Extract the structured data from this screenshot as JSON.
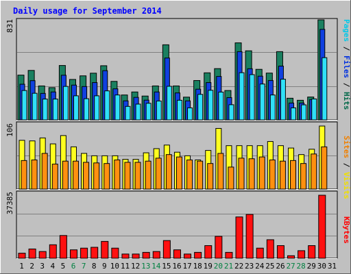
{
  "chart_data": [
    {
      "panel": "top",
      "type": "bar",
      "title": "Daily usage for September 2014",
      "ymax_label": "831",
      "ymax": 831,
      "right_labels": [
        {
          "text": "Pages",
          "color": "#00c8e8"
        },
        {
          "text": "Files",
          "color": "#0030e0"
        },
        {
          "text": "Hits",
          "color": "#006848"
        }
      ],
      "categories": [
        "1",
        "2",
        "3",
        "4",
        "5",
        "6",
        "7",
        "8",
        "9",
        "10",
        "11",
        "12",
        "13",
        "14",
        "15",
        "16",
        "17",
        "18",
        "19",
        "20",
        "21",
        "22",
        "23",
        "24",
        "25",
        "26",
        "27",
        "28",
        "29",
        "30",
        "31"
      ],
      "series": [
        {
          "name": "Hits",
          "color": "#1a8060",
          "values": [
            372,
            411,
            282,
            268,
            452,
            336,
            366,
            388,
            450,
            320,
            207,
            232,
            198,
            282,
            624,
            282,
            189,
            327,
            391,
            426,
            244,
            640,
            574,
            420,
            389,
            567,
            180,
            163,
            190,
            831,
            0
          ]
        },
        {
          "name": "Files",
          "color": "#1040e0",
          "values": [
            296,
            326,
            220,
            232,
            371,
            289,
            277,
            310,
            409,
            258,
            158,
            187,
            164,
            232,
            514,
            224,
            158,
            255,
            310,
            361,
            185,
            567,
            425,
            363,
            327,
            447,
            140,
            140,
            169,
            752,
            0
          ]
        },
        {
          "name": "Pages",
          "color": "#30e0f8",
          "values": [
            244,
            221,
            173,
            173,
            278,
            200,
            176,
            200,
            241,
            207,
            112,
            131,
            138,
            157,
            279,
            163,
            100,
            212,
            246,
            231,
            126,
            392,
            376,
            298,
            207,
            338,
            100,
            125,
            174,
            517,
            0
          ]
        }
      ]
    },
    {
      "panel": "middle",
      "type": "bar",
      "ymax_label": "106",
      "ymax": 106,
      "right_labels": [
        {
          "text": "Visits",
          "color": "#f0e000"
        },
        {
          "text": "Sites",
          "color": "#f08000"
        }
      ],
      "categories": [
        "1",
        "2",
        "3",
        "4",
        "5",
        "6",
        "7",
        "8",
        "9",
        "10",
        "11",
        "12",
        "13",
        "14",
        "15",
        "16",
        "17",
        "18",
        "19",
        "20",
        "21",
        "22",
        "23",
        "24",
        "25",
        "26",
        "27",
        "28",
        "29",
        "30",
        "31"
      ],
      "series": [
        {
          "name": "Visits",
          "color": "#ffff20",
          "values": [
            82,
            81,
            86,
            76,
            90,
            71,
            60,
            56,
            56,
            56,
            50,
            50,
            61,
            68,
            74,
            62,
            56,
            49,
            65,
            102,
            73,
            73,
            73,
            73,
            80,
            73,
            69,
            58,
            67,
            106,
            0
          ]
        },
        {
          "name": "Sites",
          "color": "#ff9010",
          "values": [
            48,
            49,
            60,
            42,
            47,
            47,
            45,
            44,
            43,
            49,
            45,
            45,
            47,
            52,
            58,
            54,
            49,
            47,
            43,
            60,
            37,
            52,
            51,
            54,
            49,
            47,
            48,
            43,
            59,
            71,
            0
          ]
        }
      ]
    },
    {
      "panel": "bottom",
      "type": "bar",
      "ymax_label": "37385",
      "ymax": 37385,
      "right_labels": [
        {
          "text": "KBytes",
          "color": "#ff0000"
        }
      ],
      "categories": [
        "1",
        "2",
        "3",
        "4",
        "5",
        "6",
        "7",
        "8",
        "9",
        "10",
        "11",
        "12",
        "13",
        "14",
        "15",
        "16",
        "17",
        "18",
        "19",
        "20",
        "21",
        "22",
        "23",
        "24",
        "25",
        "26",
        "27",
        "28",
        "29",
        "30",
        "31"
      ],
      "series": [
        {
          "name": "KBytes",
          "color": "#ff1010",
          "values": [
            3000,
            5500,
            4000,
            8000,
            13500,
            5000,
            6000,
            6500,
            10000,
            6000,
            2500,
            2500,
            3500,
            4000,
            10500,
            5000,
            2500,
            3500,
            7500,
            13000,
            3500,
            24500,
            26000,
            6000,
            11000,
            7500,
            1500,
            4500,
            7500,
            37385,
            0
          ]
        }
      ]
    }
  ],
  "xaxis": {
    "days": [
      {
        "label": "1",
        "weekend": false
      },
      {
        "label": "2",
        "weekend": false
      },
      {
        "label": "3",
        "weekend": false
      },
      {
        "label": "4",
        "weekend": false
      },
      {
        "label": "5",
        "weekend": false
      },
      {
        "label": "6",
        "weekend": true
      },
      {
        "label": "7",
        "weekend": true
      },
      {
        "label": "8",
        "weekend": false
      },
      {
        "label": "9",
        "weekend": false
      },
      {
        "label": "10",
        "weekend": false
      },
      {
        "label": "11",
        "weekend": false
      },
      {
        "label": "12",
        "weekend": false
      },
      {
        "label": "13",
        "weekend": true
      },
      {
        "label": "14",
        "weekend": true
      },
      {
        "label": "15",
        "weekend": false
      },
      {
        "label": "16",
        "weekend": false
      },
      {
        "label": "17",
        "weekend": false
      },
      {
        "label": "18",
        "weekend": false
      },
      {
        "label": "19",
        "weekend": false
      },
      {
        "label": "20",
        "weekend": true
      },
      {
        "label": "21",
        "weekend": true
      },
      {
        "label": "22",
        "weekend": false
      },
      {
        "label": "23",
        "weekend": false
      },
      {
        "label": "24",
        "weekend": false
      },
      {
        "label": "25",
        "weekend": false
      },
      {
        "label": "26",
        "weekend": false
      },
      {
        "label": "27",
        "weekend": true
      },
      {
        "label": "28",
        "weekend": true
      },
      {
        "label": "29",
        "weekend": false
      },
      {
        "label": "30",
        "weekend": false
      },
      {
        "label": "31",
        "weekend": false
      }
    ],
    "weekday_color": "#000000",
    "weekend_color": "#008040"
  },
  "colors": {
    "background": "#c0c0c0",
    "title": "#0000ff",
    "grid": "#808080",
    "axis_label": "#000000"
  }
}
